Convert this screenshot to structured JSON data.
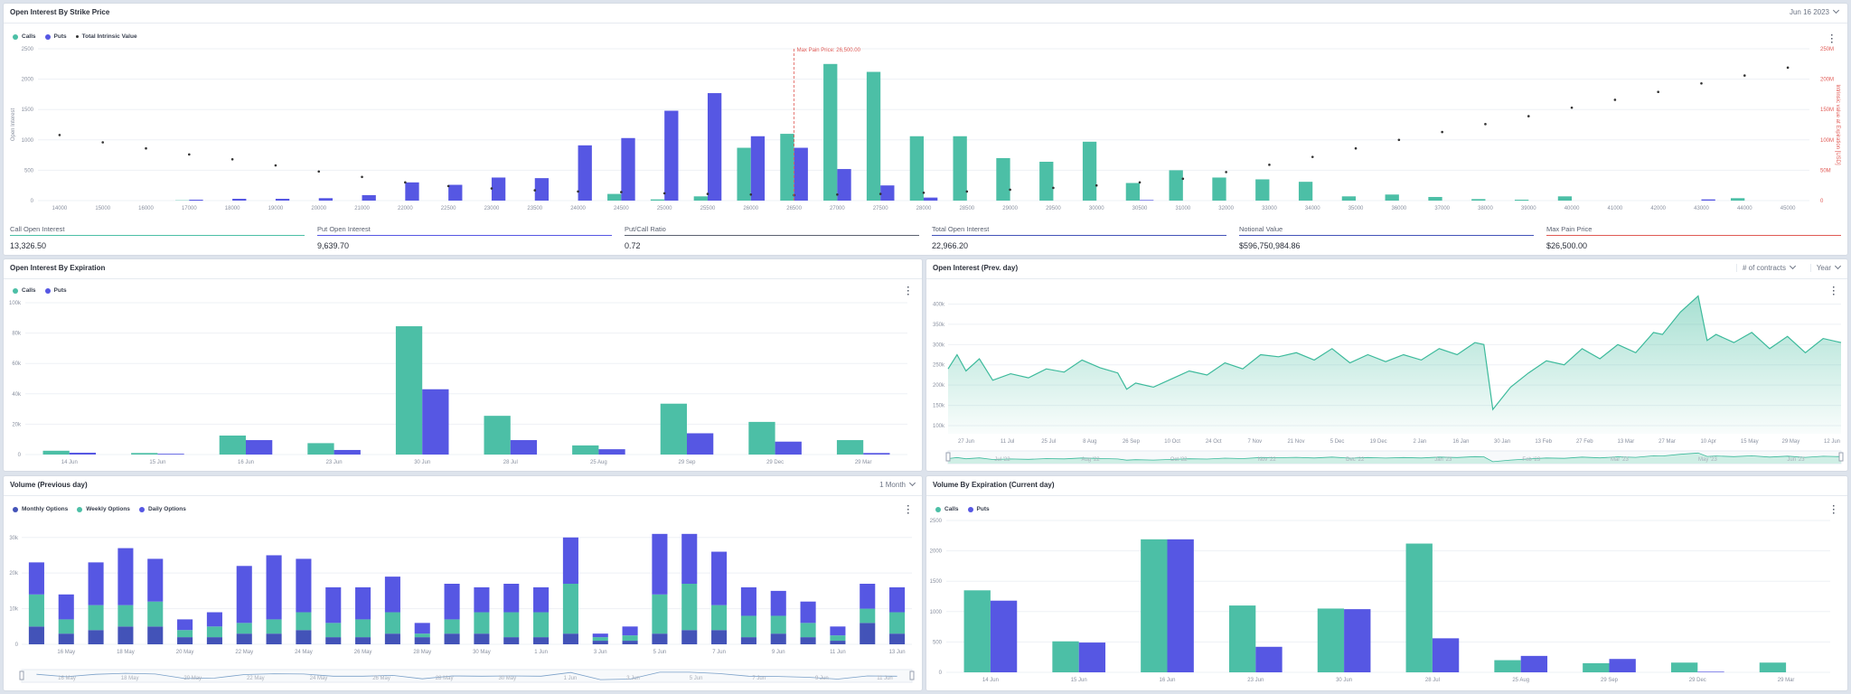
{
  "colors": {
    "calls": "#4cbfa6",
    "puts": "#5657e3",
    "monthly": "#4353b8",
    "intrinsic": "#333333",
    "maxpain": "#e05a55",
    "area": "#3cba9b"
  },
  "panel1": {
    "title": "Open Interest By Strike Price",
    "date_label": "Jun 16 2023",
    "legend": [
      "Calls",
      "Puts",
      "Total Intrinsic Value"
    ],
    "y_left_label": "Open Interest",
    "y_right_label": "Intrinsic value at Expiration [USD]",
    "max_pain_label": "Max Pain Price: 26,500.00"
  },
  "stats": [
    {
      "label": "Call Open Interest",
      "value": "13,326.50",
      "color": "#4cbfa6"
    },
    {
      "label": "Put Open Interest",
      "value": "9,639.70",
      "color": "#5657e3"
    },
    {
      "label": "Put/Call Ratio",
      "value": "0.72",
      "color": "#5a6170"
    },
    {
      "label": "Total Open Interest",
      "value": "22,966.20",
      "color": "#4353b8"
    },
    {
      "label": "Notional Value",
      "value": "$596,750,984.86",
      "color": "#4353b8"
    },
    {
      "label": "Max Pain Price",
      "value": "$26,500.00",
      "color": "#e05a55"
    }
  ],
  "panel2": {
    "title": "Open Interest By Expiration",
    "legend": [
      "Calls",
      "Puts"
    ]
  },
  "panel3": {
    "title": "Open Interest (Prev. day)",
    "dropdown1": "# of contracts",
    "dropdown2": "Year"
  },
  "panel4": {
    "title": "Volume (Previous day)",
    "dropdown": "1 Month",
    "legend": [
      "Monthly Options",
      "Weekly Options",
      "Daily Options"
    ]
  },
  "panel5": {
    "title": "Volume By Expiration (Current day)",
    "legend": [
      "Calls",
      "Puts"
    ]
  },
  "chart_data": [
    {
      "type": "bar",
      "title": "Open Interest By Strike Price",
      "ylabel": "Open Interest",
      "y2label": "Intrinsic value at Expiration [USD]",
      "ylim": [
        0,
        2500
      ],
      "y2lim": [
        0,
        250000000
      ],
      "yticks": [
        "0",
        "500",
        "1000",
        "1500",
        "2000",
        "2500"
      ],
      "y2ticks": [
        "0",
        "50M",
        "100M",
        "150M",
        "200M",
        "250M"
      ],
      "categories": [
        "14000",
        "15000",
        "16000",
        "17000",
        "18000",
        "19000",
        "20000",
        "21000",
        "22000",
        "22500",
        "23000",
        "23500",
        "24000",
        "24500",
        "25000",
        "25500",
        "26000",
        "26500",
        "27000",
        "27500",
        "28000",
        "28500",
        "29000",
        "29500",
        "30000",
        "30500",
        "31000",
        "32000",
        "33000",
        "34000",
        "35000",
        "36000",
        "37000",
        "38000",
        "39000",
        "40000",
        "41000",
        "42000",
        "43000",
        "44000",
        "45000"
      ],
      "series": [
        {
          "name": "Calls",
          "values": [
            0,
            0,
            0,
            5,
            0,
            0,
            0,
            0,
            0,
            0,
            0,
            0,
            0,
            110,
            20,
            70,
            870,
            1100,
            2250,
            2120,
            1060,
            1060,
            700,
            640,
            970,
            290,
            500,
            380,
            350,
            310,
            70,
            100,
            60,
            25,
            15,
            70,
            0,
            0,
            0,
            40,
            0
          ]
        },
        {
          "name": "Puts",
          "values": [
            0,
            0,
            0,
            15,
            30,
            30,
            40,
            90,
            300,
            260,
            380,
            370,
            910,
            1030,
            1480,
            1770,
            1060,
            870,
            520,
            250,
            50,
            0,
            0,
            0,
            0,
            10,
            0,
            0,
            0,
            0,
            0,
            0,
            0,
            0,
            0,
            0,
            0,
            0,
            20,
            0,
            0
          ]
        },
        {
          "name": "Total Intrinsic Value",
          "values": [
            108000000,
            96000000,
            86000000,
            76000000,
            68000000,
            58000000,
            48000000,
            39000000,
            30000000,
            24000000,
            20000000,
            17000000,
            15000000,
            14000000,
            12000000,
            11000000,
            10000000,
            9000000,
            10000000,
            11000000,
            13000000,
            15000000,
            18000000,
            21000000,
            25000000,
            30000000,
            36000000,
            47000000,
            59000000,
            72000000,
            86000000,
            100000000,
            113000000,
            126000000,
            139000000,
            153000000,
            166000000,
            179000000,
            193000000,
            206000000,
            219000000
          ]
        }
      ],
      "max_pain": "26500",
      "annotation": "Max Pain Price: 26,500.00"
    },
    {
      "type": "bar",
      "title": "Open Interest By Expiration",
      "ylim": [
        0,
        100000
      ],
      "yticks": [
        "0",
        "20k",
        "40k",
        "60k",
        "80k",
        "100k"
      ],
      "categories": [
        "14 Jun",
        "15 Jun",
        "16 Jun",
        "23 Jun",
        "30 Jun",
        "28 Jul",
        "25 Aug",
        "29 Sep",
        "29 Dec",
        "29 Mar"
      ],
      "series": [
        {
          "name": "Calls",
          "values": [
            2500,
            1000,
            12500,
            7500,
            84500,
            25500,
            6000,
            33500,
            21500,
            9500
          ]
        },
        {
          "name": "Puts",
          "values": [
            1200,
            500,
            9500,
            3000,
            43000,
            9500,
            3500,
            14000,
            8500,
            1000
          ]
        }
      ]
    },
    {
      "type": "area",
      "title": "Open Interest (Prev. day)",
      "ylim": [
        80000,
        430000
      ],
      "yticks": [
        "100k",
        "150k",
        "200k",
        "250k",
        "300k",
        "350k",
        "400k"
      ],
      "xticks": [
        "27 Jun",
        "11 Jul",
        "25 Jul",
        "8 Aug",
        "26 Sep",
        "10 Oct",
        "24 Oct",
        "7 Nov",
        "21 Nov",
        "5 Dec",
        "19 Dec",
        "2 Jan",
        "16 Jan",
        "30 Jan",
        "13 Feb",
        "27 Feb",
        "13 Mar",
        "27 Mar",
        "10 Apr",
        "15 May",
        "29 May",
        "12 Jun"
      ],
      "navigator_labels": [
        "Jul '22",
        "Aug '22",
        "Oct '22",
        "Nov '22",
        "Dec '22",
        "Jan '23",
        "Feb '23",
        "Mar '23",
        "May '23",
        "Jun '23"
      ],
      "x": [
        0,
        0.01,
        0.02,
        0.035,
        0.05,
        0.07,
        0.09,
        0.11,
        0.13,
        0.15,
        0.17,
        0.19,
        0.2,
        0.21,
        0.23,
        0.25,
        0.27,
        0.29,
        0.31,
        0.33,
        0.35,
        0.37,
        0.39,
        0.41,
        0.43,
        0.45,
        0.47,
        0.49,
        0.51,
        0.53,
        0.55,
        0.57,
        0.59,
        0.6,
        0.61,
        0.63,
        0.65,
        0.67,
        0.69,
        0.71,
        0.73,
        0.75,
        0.77,
        0.79,
        0.8,
        0.82,
        0.84,
        0.85,
        0.86,
        0.88,
        0.9,
        0.92,
        0.94,
        0.96,
        0.98,
        1
      ],
      "values": [
        240000,
        275000,
        235000,
        265000,
        212000,
        228000,
        218000,
        240000,
        232000,
        262000,
        243000,
        230000,
        190000,
        205000,
        195000,
        215000,
        235000,
        225000,
        255000,
        240000,
        275000,
        270000,
        280000,
        262000,
        290000,
        255000,
        275000,
        258000,
        275000,
        262000,
        290000,
        275000,
        305000,
        300000,
        140000,
        195000,
        230000,
        260000,
        250000,
        290000,
        265000,
        300000,
        280000,
        330000,
        325000,
        380000,
        420000,
        310000,
        325000,
        305000,
        330000,
        290000,
        320000,
        280000,
        315000,
        305000
      ]
    },
    {
      "type": "bar",
      "title": "Volume (Previous day)",
      "ylim": [
        0,
        34000
      ],
      "yticks": [
        "0",
        "10k",
        "20k",
        "30k"
      ],
      "xticks": [
        "16 May",
        "18 May",
        "20 May",
        "22 May",
        "24 May",
        "26 May",
        "28 May",
        "30 May",
        "1 Jun",
        "3 Jun",
        "5 Jun",
        "7 Jun",
        "9 Jun",
        "11 Jun",
        "13 Jun"
      ],
      "series": [
        {
          "name": "Monthly Options",
          "values": [
            5000,
            3000,
            4000,
            5000,
            5000,
            2000,
            2000,
            3000,
            3000,
            4000,
            2000,
            2000,
            3000,
            2000,
            3000,
            3000,
            2000,
            2000,
            3000,
            1000,
            1000,
            3000,
            4000,
            4000,
            2000,
            3000,
            2000,
            1000,
            6000,
            3000
          ]
        },
        {
          "name": "Weekly Options",
          "values": [
            9000,
            4000,
            7000,
            6000,
            7000,
            2000,
            3000,
            3000,
            4000,
            5000,
            4000,
            5000,
            6000,
            1000,
            4000,
            6000,
            7000,
            7000,
            14000,
            1000,
            1500,
            11000,
            13000,
            7000,
            6000,
            5000,
            4000,
            1500,
            4000,
            6000
          ]
        },
        {
          "name": "Daily Options",
          "values": [
            9000,
            7000,
            12000,
            16000,
            12000,
            3000,
            4000,
            16000,
            18000,
            15000,
            10000,
            9000,
            10000,
            3000,
            10000,
            7000,
            8000,
            7000,
            13000,
            1000,
            2500,
            17000,
            14000,
            15000,
            8000,
            7000,
            6000,
            2500,
            7000,
            7000
          ]
        }
      ],
      "navigator_labels": [
        "16 May",
        "18 May",
        "20 May",
        "22 May",
        "24 May",
        "26 May",
        "28 May",
        "30 May",
        "1 Jun",
        "3 Jun",
        "5 Jun",
        "7 Jun",
        "9 Jun",
        "11 Jun"
      ]
    },
    {
      "type": "bar",
      "title": "Volume By Expiration (Current day)",
      "ylim": [
        0,
        2500
      ],
      "yticks": [
        "0",
        "500",
        "1000",
        "1500",
        "2000",
        "2500"
      ],
      "categories": [
        "14 Jun",
        "15 Jun",
        "16 Jun",
        "23 Jun",
        "30 Jun",
        "28 Jul",
        "25 Aug",
        "29 Sep",
        "29 Dec",
        "29 Mar"
      ],
      "series": [
        {
          "name": "Calls",
          "values": [
            1350,
            510,
            2190,
            1100,
            1050,
            2120,
            200,
            150,
            160,
            160
          ]
        },
        {
          "name": "Puts",
          "values": [
            1180,
            490,
            2190,
            420,
            1040,
            560,
            270,
            220,
            10,
            0
          ]
        }
      ]
    }
  ]
}
